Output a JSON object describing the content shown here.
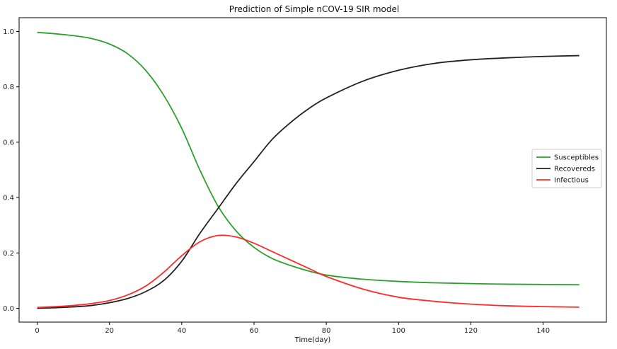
{
  "chart_data": {
    "type": "line",
    "title": "Prediction of Simple nCOV-19 SIR model",
    "xlabel": "Time(day)",
    "ylabel": "",
    "xlim": [
      -5,
      157.5
    ],
    "ylim": [
      -0.05,
      1.05
    ],
    "xticks": [
      0,
      20,
      40,
      60,
      80,
      100,
      120,
      140
    ],
    "yticks": [
      0.0,
      0.2,
      0.4,
      0.6,
      0.8,
      1.0
    ],
    "xtick_labels": [
      "0",
      "20",
      "40",
      "60",
      "80",
      "100",
      "120",
      "140"
    ],
    "ytick_labels": [
      "0.0",
      "0.2",
      "0.4",
      "0.6",
      "0.8",
      "1.0"
    ],
    "grid": false,
    "legend_position": "center-right",
    "series": [
      {
        "name": "Susceptibles",
        "color": "#2ca02c",
        "x": [
          0,
          5,
          10,
          15,
          20,
          25,
          30,
          35,
          40,
          45,
          50,
          55,
          60,
          65,
          70,
          75,
          80,
          90,
          100,
          110,
          120,
          130,
          140,
          150
        ],
        "y": [
          0.997,
          0.992,
          0.985,
          0.975,
          0.955,
          0.92,
          0.86,
          0.77,
          0.65,
          0.5,
          0.37,
          0.28,
          0.22,
          0.18,
          0.155,
          0.135,
          0.12,
          0.105,
          0.097,
          0.092,
          0.089,
          0.087,
          0.086,
          0.085
        ]
      },
      {
        "name": "Recovereds",
        "color": "#222222",
        "x": [
          0,
          5,
          10,
          15,
          20,
          25,
          30,
          35,
          40,
          45,
          50,
          55,
          60,
          65,
          70,
          75,
          80,
          90,
          100,
          110,
          120,
          130,
          140,
          150
        ],
        "y": [
          0.0,
          0.002,
          0.005,
          0.01,
          0.02,
          0.035,
          0.06,
          0.1,
          0.17,
          0.27,
          0.36,
          0.45,
          0.53,
          0.61,
          0.67,
          0.72,
          0.76,
          0.82,
          0.86,
          0.885,
          0.898,
          0.905,
          0.91,
          0.913
        ]
      },
      {
        "name": "Infectious",
        "color": "#ff2a2a",
        "x": [
          0,
          5,
          10,
          15,
          20,
          25,
          30,
          35,
          40,
          45,
          50,
          55,
          60,
          65,
          70,
          75,
          80,
          90,
          100,
          110,
          120,
          130,
          140,
          150
        ],
        "y": [
          0.003,
          0.006,
          0.01,
          0.017,
          0.028,
          0.048,
          0.08,
          0.13,
          0.19,
          0.24,
          0.263,
          0.258,
          0.235,
          0.205,
          0.175,
          0.145,
          0.115,
          0.07,
          0.04,
          0.025,
          0.015,
          0.009,
          0.006,
          0.004
        ]
      }
    ]
  }
}
